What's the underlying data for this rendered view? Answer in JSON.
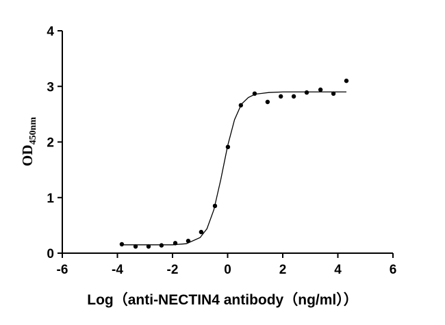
{
  "chart_data": {
    "type": "scatter",
    "x_label": "Log（anti-NECTIN4 antibody（ng/ml））",
    "y_label": "OD",
    "y_label_sub": "450nm",
    "x": [
      -3.84,
      -3.34,
      -2.87,
      -2.4,
      -1.9,
      -1.43,
      -0.96,
      -0.46,
      0.01,
      0.48,
      0.98,
      1.45,
      1.93,
      2.4,
      2.87,
      3.37,
      3.84,
      4.31
    ],
    "values": [
      0.16,
      0.12,
      0.12,
      0.14,
      0.18,
      0.22,
      0.38,
      0.85,
      1.91,
      2.66,
      2.87,
      2.72,
      2.82,
      2.82,
      2.89,
      2.94,
      2.87,
      3.1
    ],
    "color": "#000000",
    "curve": {
      "x": [
        -3.84,
        -3,
        -2,
        -1.5,
        -1,
        -0.75,
        -0.5,
        -0.25,
        0,
        0.25,
        0.5,
        0.75,
        1,
        1.5,
        2,
        3,
        4.31
      ],
      "values": [
        0.15,
        0.15,
        0.15,
        0.17,
        0.28,
        0.44,
        0.78,
        1.32,
        1.93,
        2.4,
        2.68,
        2.8,
        2.86,
        2.89,
        2.9,
        2.9,
        2.9
      ]
    },
    "xlim": [
      -6,
      6
    ],
    "xticks": [
      -6,
      -4,
      -2,
      0,
      2,
      4,
      6
    ],
    "ylim": [
      0,
      4
    ],
    "yticks": [
      0,
      1,
      2,
      3,
      4
    ]
  }
}
